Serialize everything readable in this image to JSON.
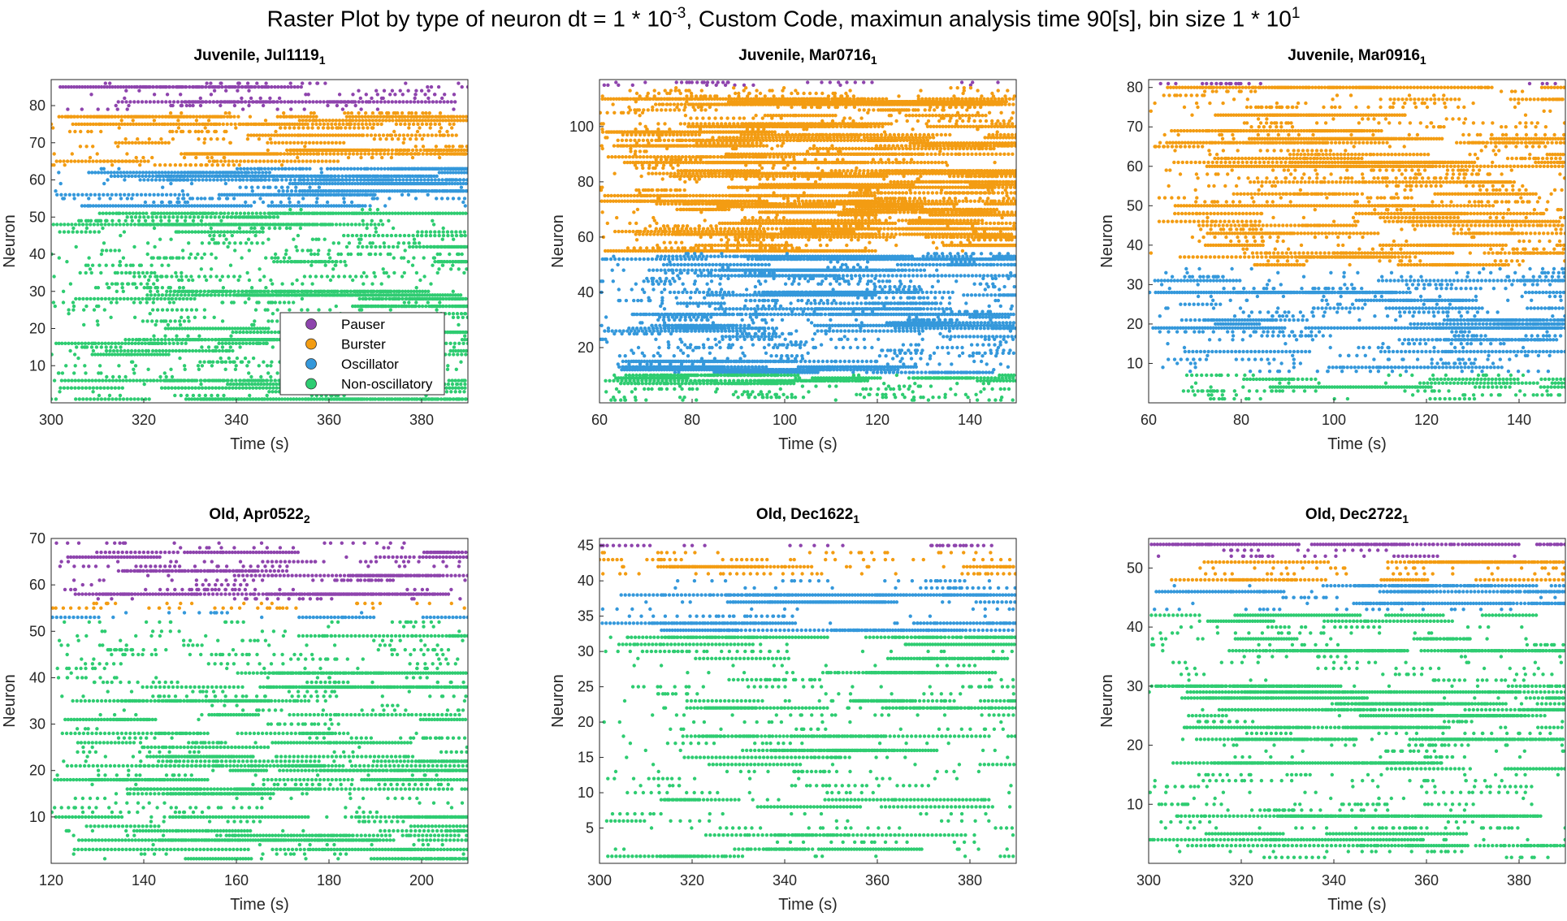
{
  "figure": {
    "suptitle_main": "Raster Plot by type of neuron dt = 1 * 10",
    "suptitle_exp1": "-3",
    "suptitle_mid": ", Custom Code, maximun analysis time 90[s], bin size 1 * 10",
    "suptitle_exp2": "1"
  },
  "legend": {
    "entries": [
      {
        "label": "Pauser",
        "color": "#7E2F8E"
      },
      {
        "label": "Burster",
        "color": "#EDB120"
      },
      {
        "label": "Oscillator",
        "color": "#4DBEEE"
      },
      {
        "label": "Non-oscillatory",
        "color": "#2ECC71"
      }
    ]
  },
  "colors": {
    "Pauser": "#8e44ad",
    "Burster": "#f39c12",
    "Oscillator": "#3498db",
    "Non-oscillatory": "#2ecc71"
  },
  "chart_data": [
    {
      "type": "scatter",
      "title_main": "Juvenile, Jul1119",
      "title_sub": "1",
      "xlabel": "Time (s)",
      "ylabel": "Neuron",
      "xlim": [
        300,
        390
      ],
      "ylim": [
        0,
        87
      ],
      "xticks": [
        300,
        320,
        340,
        360,
        380
      ],
      "yticks": [
        10,
        20,
        30,
        40,
        50,
        60,
        70,
        80
      ],
      "legend_position": "lower-right",
      "groups": [
        {
          "type": "Pauser",
          "neurons": [
            79,
            86
          ]
        },
        {
          "type": "Burster",
          "neurons": [
            64,
            78
          ]
        },
        {
          "type": "Oscillator",
          "neurons": [
            53,
            63
          ]
        },
        {
          "type": "Non-oscillatory",
          "neurons": [
            1,
            52
          ]
        }
      ]
    },
    {
      "type": "scatter",
      "title_main": "Juvenile, Mar0716",
      "title_sub": "1",
      "xlabel": "Time (s)",
      "ylabel": "Neuron",
      "xlim": [
        60,
        150
      ],
      "ylim": [
        0,
        117
      ],
      "xticks": [
        60,
        80,
        100,
        120,
        140
      ],
      "yticks": [
        20,
        40,
        60,
        80,
        100
      ],
      "groups": [
        {
          "type": "Pauser",
          "neurons": [
            115,
            116
          ]
        },
        {
          "type": "Burster",
          "neurons": [
            55,
            114
          ]
        },
        {
          "type": "Oscillator",
          "neurons": [
            11,
            54
          ]
        },
        {
          "type": "Non-oscillatory",
          "neurons": [
            1,
            10
          ]
        }
      ]
    },
    {
      "type": "scatter",
      "title_main": "Juvenile, Mar0916",
      "title_sub": "1",
      "xlabel": "Time (s)",
      "ylabel": "Neuron",
      "xlim": [
        60,
        150
      ],
      "ylim": [
        0,
        82
      ],
      "xticks": [
        60,
        80,
        100,
        120,
        140
      ],
      "yticks": [
        10,
        20,
        30,
        40,
        50,
        60,
        70,
        80
      ],
      "groups": [
        {
          "type": "Pauser",
          "neurons": [
            81,
            81
          ]
        },
        {
          "type": "Burster",
          "neurons": [
            35,
            80
          ]
        },
        {
          "type": "Oscillator",
          "neurons": [
            8,
            34
          ]
        },
        {
          "type": "Non-oscillatory",
          "neurons": [
            1,
            7
          ]
        }
      ]
    },
    {
      "type": "scatter",
      "title_main": "Old, Apr0522",
      "title_sub": "2",
      "xlabel": "Time (s)",
      "ylabel": "Neuron",
      "xlim": [
        120,
        210
      ],
      "ylim": [
        0,
        70
      ],
      "xticks": [
        120,
        140,
        160,
        180,
        200
      ],
      "yticks": [
        10,
        20,
        30,
        40,
        50,
        60,
        70
      ],
      "groups": [
        {
          "type": "Pauser",
          "neurons": [
            57,
            69
          ]
        },
        {
          "type": "Burster",
          "neurons": [
            55,
            56
          ]
        },
        {
          "type": "Oscillator",
          "neurons": [
            53,
            54
          ]
        },
        {
          "type": "Non-oscillatory",
          "neurons": [
            1,
            52
          ]
        }
      ]
    },
    {
      "type": "scatter",
      "title_main": "Old, Dec1622",
      "title_sub": "1",
      "xlabel": "Time (s)",
      "ylabel": "Neuron",
      "xlim": [
        300,
        390
      ],
      "ylim": [
        0,
        46
      ],
      "xticks": [
        300,
        320,
        340,
        360,
        380
      ],
      "yticks": [
        5,
        10,
        15,
        20,
        25,
        30,
        35,
        40,
        45
      ],
      "groups": [
        {
          "type": "Pauser",
          "neurons": [
            45,
            45
          ]
        },
        {
          "type": "Burster",
          "neurons": [
            41,
            44
          ]
        },
        {
          "type": "Oscillator",
          "neurons": [
            33,
            40
          ]
        },
        {
          "type": "Non-oscillatory",
          "neurons": [
            1,
            32
          ]
        }
      ]
    },
    {
      "type": "scatter",
      "title_main": "Old, Dec2722",
      "title_sub": "1",
      "xlabel": "Time (s)",
      "ylabel": "Neuron",
      "xlim": [
        300,
        390
      ],
      "ylim": [
        0,
        55
      ],
      "xticks": [
        300,
        320,
        340,
        360,
        380
      ],
      "yticks": [
        10,
        20,
        30,
        40,
        50
      ],
      "groups": [
        {
          "type": "Pauser",
          "neurons": [
            52,
            54
          ]
        },
        {
          "type": "Burster",
          "neurons": [
            48,
            51
          ]
        },
        {
          "type": "Oscillator",
          "neurons": [
            43,
            47
          ]
        },
        {
          "type": "Non-oscillatory",
          "neurons": [
            1,
            42
          ]
        }
      ]
    }
  ]
}
